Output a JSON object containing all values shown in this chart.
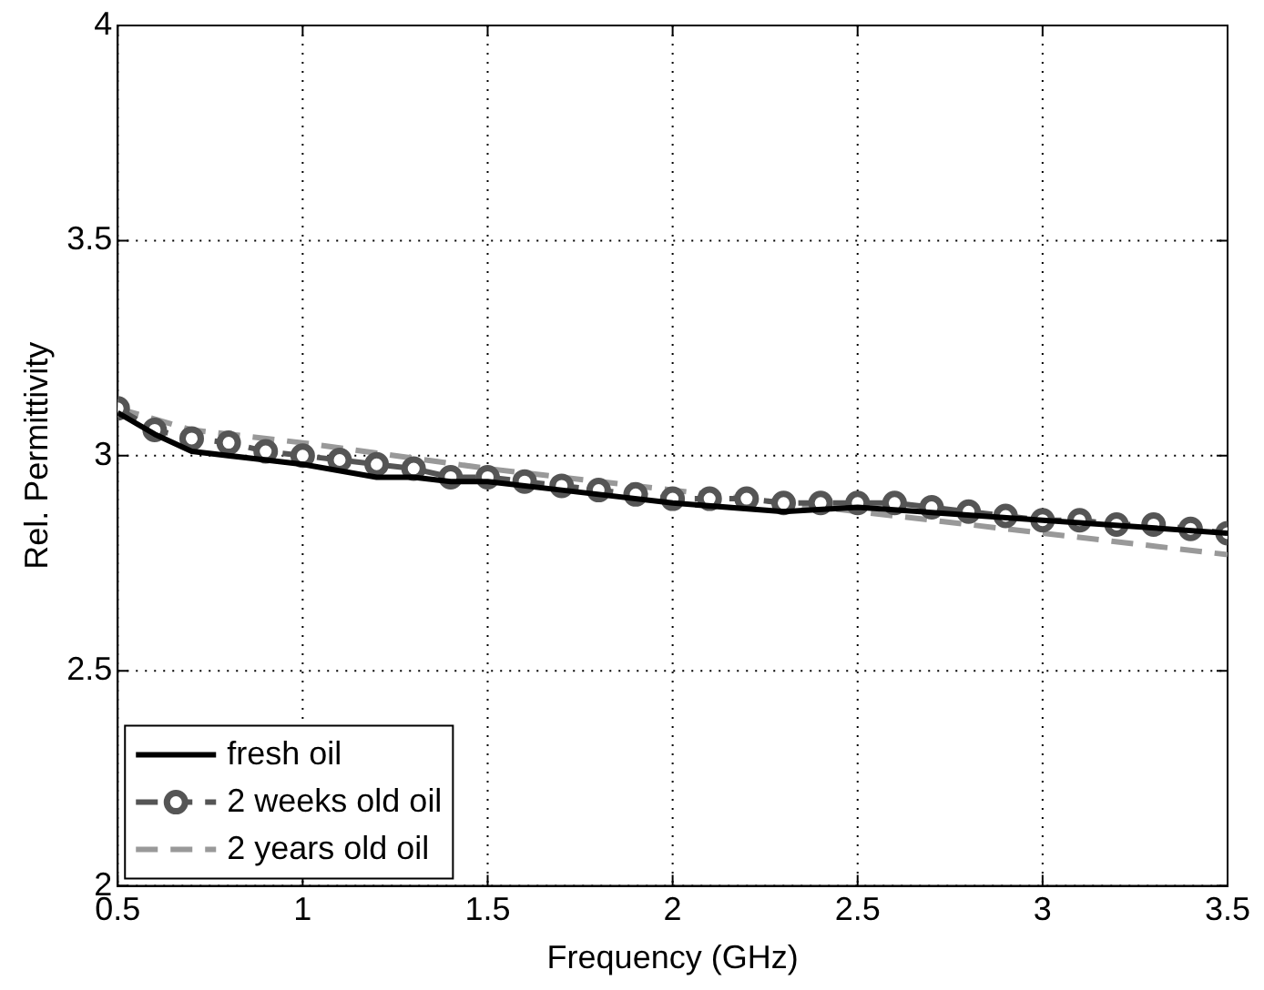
{
  "chart_data": {
    "type": "line",
    "xlabel": "Frequency (GHz)",
    "ylabel": "Rel. Permittivity",
    "xlim": [
      0.5,
      3.5
    ],
    "xticks": [
      0.5,
      1,
      1.5,
      2,
      2.5,
      3,
      3.5
    ],
    "ylim": [
      2,
      4
    ],
    "yticks": [
      2,
      2.5,
      3,
      3.5,
      4
    ],
    "grid": true,
    "legend": "bottom left",
    "series": [
      {
        "name": "fresh oil",
        "color": "#000000",
        "marker": "none",
        "line_style": "solid",
        "x": [
          0.5,
          0.6,
          0.7,
          1.0,
          1.2,
          1.3,
          1.4,
          1.5,
          1.7,
          2.0,
          2.3,
          2.5,
          3.0,
          3.5
        ],
        "values": [
          3.1,
          3.05,
          3.01,
          2.98,
          2.95,
          2.95,
          2.94,
          2.94,
          2.92,
          2.89,
          2.87,
          2.88,
          2.85,
          2.82
        ]
      },
      {
        "name": "2 weeks old oil",
        "color": "#555555",
        "marker": "circle",
        "line_style": "dashed",
        "x": [
          0.5,
          0.6,
          0.7,
          0.8,
          0.9,
          1.0,
          1.1,
          1.2,
          1.3,
          1.4,
          1.5,
          1.6,
          1.7,
          1.8,
          1.9,
          2.0,
          2.1,
          2.2,
          2.3,
          2.4,
          2.5,
          2.6,
          2.7,
          2.8,
          2.9,
          3.0,
          3.1,
          3.2,
          3.3,
          3.4,
          3.5
        ],
        "values": [
          3.11,
          3.06,
          3.04,
          3.03,
          3.01,
          3.0,
          2.99,
          2.98,
          2.97,
          2.95,
          2.95,
          2.94,
          2.93,
          2.92,
          2.91,
          2.9,
          2.9,
          2.9,
          2.89,
          2.89,
          2.89,
          2.89,
          2.88,
          2.87,
          2.86,
          2.85,
          2.85,
          2.84,
          2.84,
          2.83,
          2.82
        ]
      },
      {
        "name": "2 years old oil",
        "color": "#999999",
        "marker": "none",
        "line_style": "dashed",
        "x": [
          0.5,
          0.7,
          1.0,
          1.5,
          2.0,
          2.5,
          3.0,
          3.5
        ],
        "values": [
          3.11,
          3.06,
          3.03,
          2.97,
          2.92,
          2.87,
          2.82,
          2.77
        ]
      }
    ]
  }
}
